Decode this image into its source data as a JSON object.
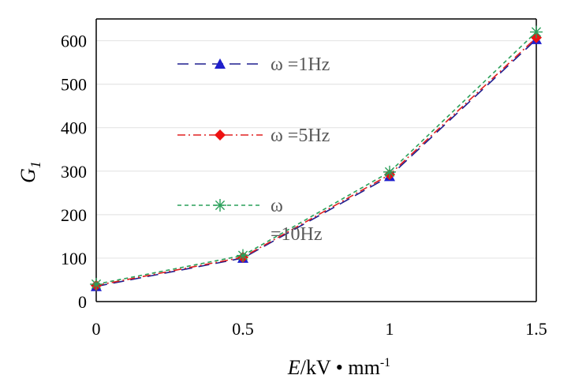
{
  "chart_data": {
    "type": "line",
    "x": [
      0,
      0.5,
      1,
      1.5
    ],
    "xlim": [
      0,
      1.5
    ],
    "ylim": [
      0,
      650
    ],
    "xticks": [
      "0",
      "0.5",
      "1",
      "1.5"
    ],
    "yticks": [
      "0",
      "100",
      "200",
      "300",
      "400",
      "500",
      "600"
    ],
    "xlabel": {
      "E": "E",
      "unit": "/kV • mm",
      "exp": "-1"
    },
    "ylabel": {
      "G": "G",
      "sub": "1"
    },
    "grid": "horizontal",
    "legend_position": "top-left inside plot",
    "series": [
      {
        "name": "ω =1Hz",
        "values": [
          35,
          100,
          288,
          603
        ],
        "color": "#1f1f8f",
        "marker": "triangle",
        "line": "long-dash",
        "marker_color": "#1f1fcc"
      },
      {
        "name": "ω =5Hz",
        "values": [
          37,
          102,
          292,
          607
        ],
        "color": "#e02020",
        "marker": "diamond",
        "line": "dash-dot",
        "marker_color": "#ee1111"
      },
      {
        "name": "ω =10Hz",
        "values": [
          40,
          106,
          298,
          620
        ],
        "color": "#2aa05a",
        "marker": "asterisk",
        "line": "dotted-dash",
        "marker_color": "#2aa05a"
      }
    ],
    "legend_lines": [
      [
        "ω =1Hz"
      ],
      [
        "ω =5Hz"
      ],
      [
        "ω",
        "=10Hz"
      ]
    ]
  }
}
